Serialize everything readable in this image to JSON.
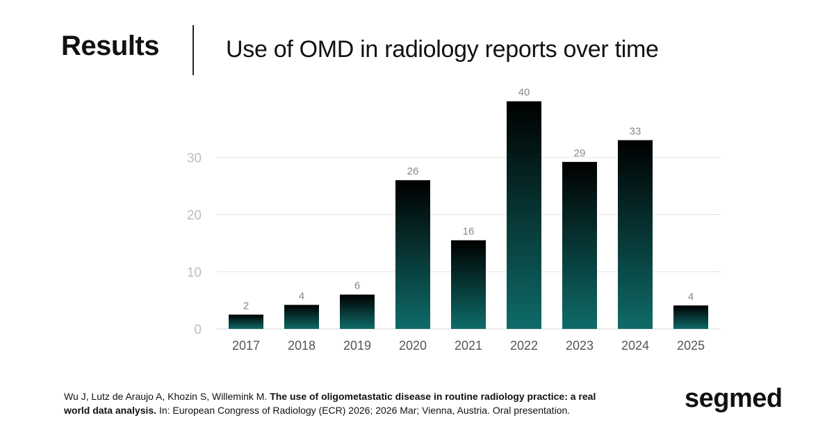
{
  "header": {
    "section": "Results",
    "title": "Use of OMD in radiology reports over time"
  },
  "chart_data": {
    "type": "bar",
    "title": "Use of OMD in radiology reports over time",
    "categories": [
      "2017",
      "2018",
      "2019",
      "2020",
      "2021",
      "2022",
      "2023",
      "2024",
      "2025"
    ],
    "values": [
      2,
      4,
      6,
      26,
      16,
      40,
      29,
      33,
      4
    ],
    "bar_tops": [
      2.5,
      4.2,
      6,
      26,
      15.5,
      39.8,
      29.2,
      33,
      4.1
    ],
    "yticks": [
      0,
      10,
      20,
      30
    ],
    "ylim": [
      0,
      40
    ],
    "xlabel": "",
    "ylabel": "",
    "grid": true,
    "colors": {
      "bar_top": "#000000",
      "bar_bottom": "#0e6b68",
      "grid": "#e3e3e3",
      "tick": "#bdbdbd",
      "label": "#888888",
      "category": "#555555"
    }
  },
  "citation": {
    "authors": "Wu J, Lutz de Araujo A, Khozin S, Willemink M.",
    "title": "The use of oligometastatic disease in routine radiology practice: a real world data analysis.",
    "venue": "In: European Congress of Radiology (ECR) 2026; 2026 Mar; Vienna, Austria. Oral presentation."
  },
  "brand": {
    "logo_text": "segmed"
  }
}
